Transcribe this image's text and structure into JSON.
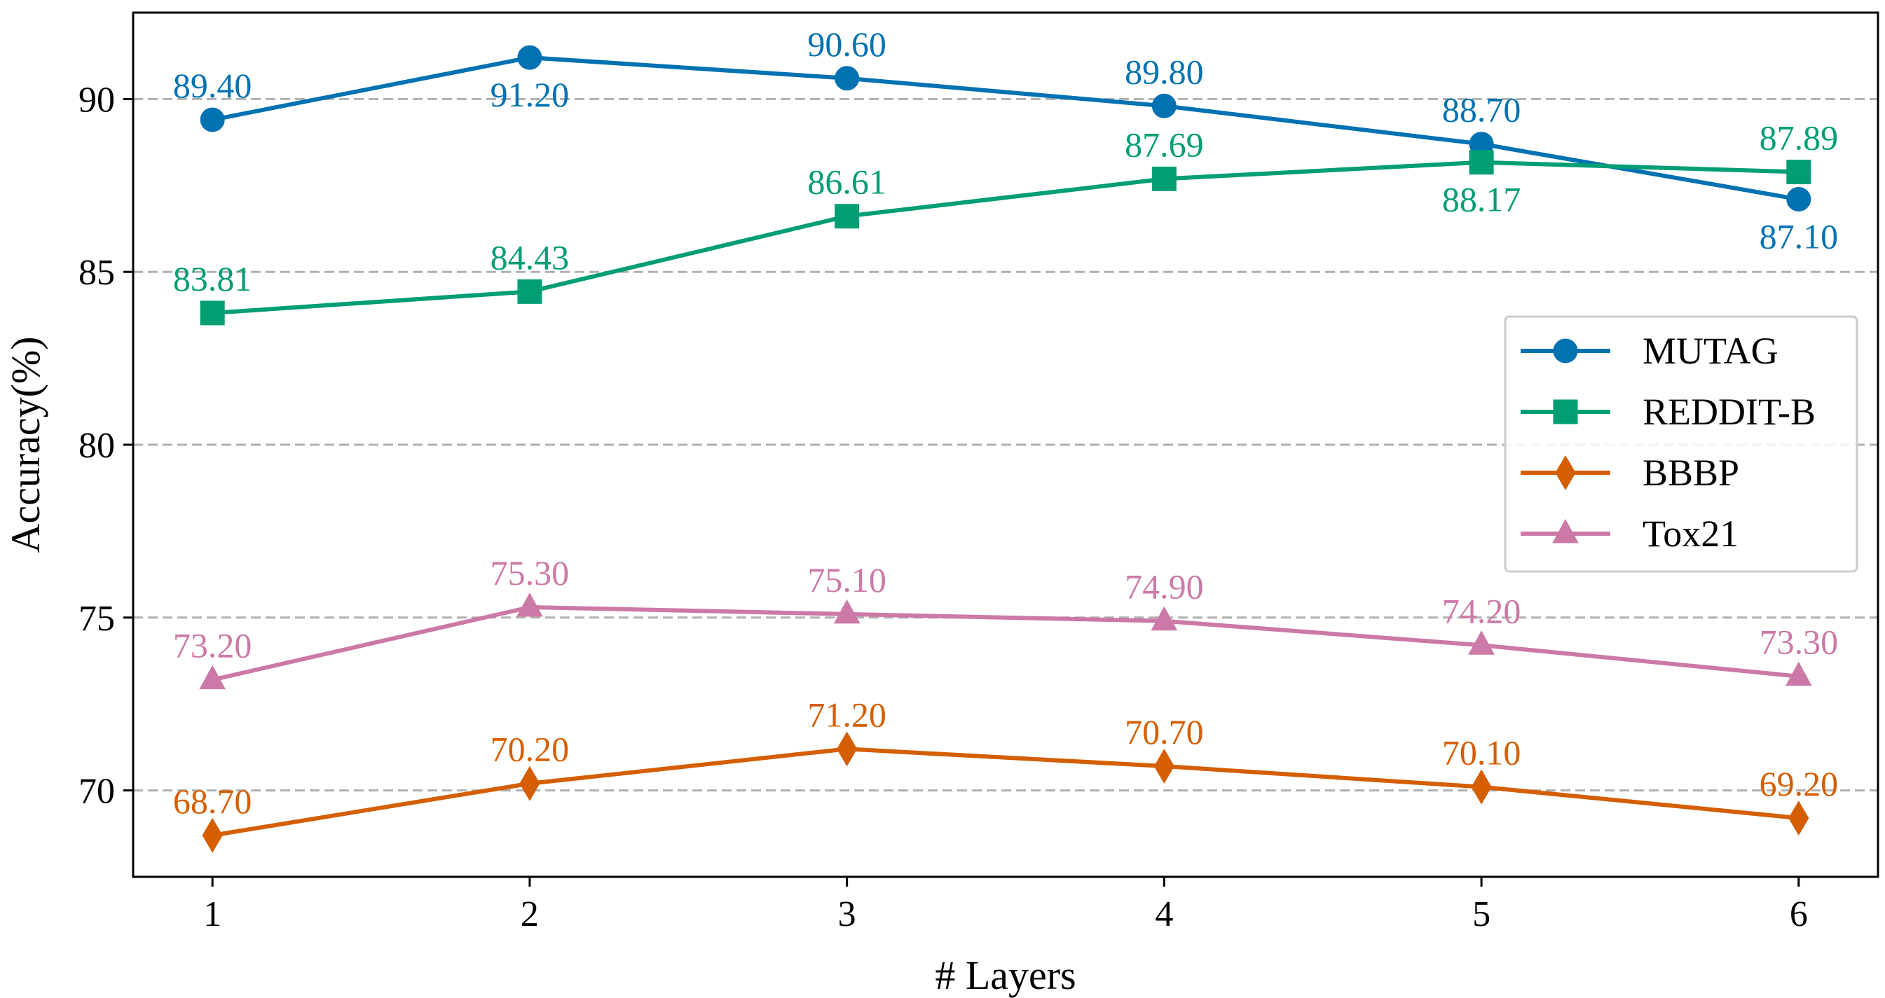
{
  "chart_data": {
    "type": "line",
    "title": "",
    "xlabel": "# Layers",
    "ylabel": "Accuracy(%)",
    "x": [
      1,
      2,
      3,
      4,
      5,
      6
    ],
    "x_tick_labels": [
      "1",
      "2",
      "3",
      "4",
      "5",
      "6"
    ],
    "xlim": [
      0.75,
      6.25
    ],
    "ylim": [
      67.5,
      92.5
    ],
    "y_ticks": [
      70,
      75,
      80,
      85,
      90
    ],
    "y_tick_labels": [
      "70",
      "75",
      "80",
      "85",
      "90"
    ],
    "grid": "horizontal dashed",
    "legend_position": "center-right",
    "series": [
      {
        "name": "MUTAG",
        "color": "#0072B2",
        "marker": "circle",
        "values": [
          89.4,
          91.2,
          90.6,
          89.8,
          88.7,
          87.1
        ],
        "labels": [
          "89.40",
          "91.20",
          "90.60",
          "89.80",
          "88.70",
          "87.10"
        ],
        "label_positions": [
          "above",
          "below",
          "above",
          "above",
          "above",
          "below"
        ]
      },
      {
        "name": "REDDIT-B",
        "color": "#009E73",
        "marker": "square",
        "values": [
          83.81,
          84.43,
          86.61,
          87.69,
          88.17,
          87.89
        ],
        "labels": [
          "83.81",
          "84.43",
          "86.61",
          "87.69",
          "88.17",
          "87.89"
        ],
        "label_positions": [
          "above",
          "above",
          "above",
          "above",
          "below",
          "above"
        ]
      },
      {
        "name": "BBBP",
        "color": "#D55E00",
        "marker": "diamond",
        "values": [
          68.7,
          70.2,
          71.2,
          70.7,
          70.1,
          69.2
        ],
        "labels": [
          "68.70",
          "70.20",
          "71.20",
          "70.70",
          "70.10",
          "69.20"
        ],
        "label_positions": [
          "above",
          "above",
          "above",
          "above",
          "above",
          "above"
        ]
      },
      {
        "name": "Tox21",
        "color": "#CC79A7",
        "marker": "triangle",
        "values": [
          73.2,
          75.3,
          75.1,
          74.9,
          74.2,
          73.3
        ],
        "labels": [
          "73.20",
          "75.30",
          "75.10",
          "74.90",
          "74.20",
          "73.30"
        ],
        "label_positions": [
          "above",
          "above",
          "above",
          "above",
          "above",
          "above"
        ]
      }
    ]
  }
}
